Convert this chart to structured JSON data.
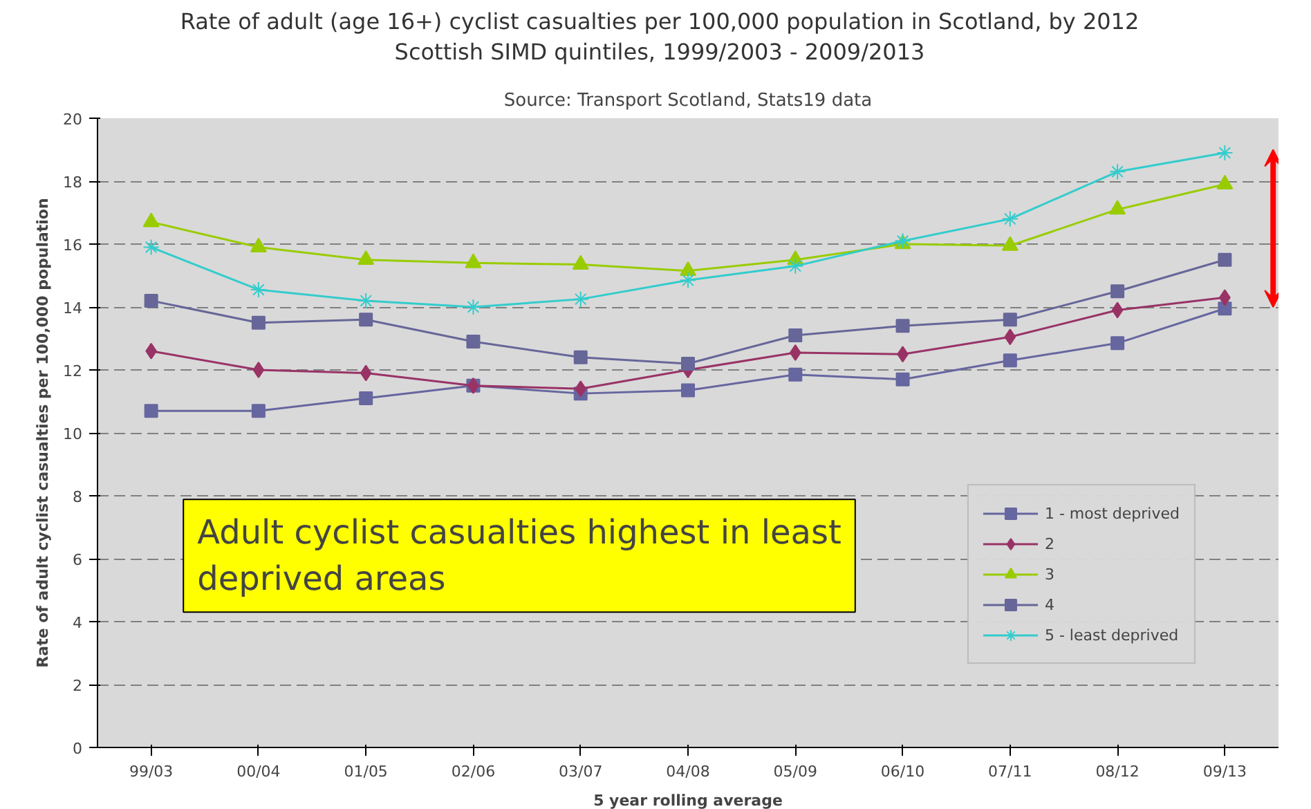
{
  "chart_data": {
    "type": "line",
    "title": "Rate of adult (age 16+) cyclist casualties per 100,000 population in Scotland, by 2012\nScottish SIMD quintiles, 1999/2003 - 2009/2013",
    "subtitle": "Source: Transport Scotland, Stats19 data",
    "xlabel": "5 year rolling average",
    "ylabel": "Rate of adult cyclist casualties per 100,000 population",
    "categories": [
      "99/03",
      "00/04",
      "01/05",
      "02/06",
      "03/07",
      "04/08",
      "05/09",
      "06/10",
      "07/11",
      "08/12",
      "09/13"
    ],
    "ylim": [
      0,
      20
    ],
    "yticks": [
      0,
      2,
      4,
      6,
      8,
      10,
      12,
      14,
      16,
      18,
      20
    ],
    "grid": "y",
    "legend": "bottom right",
    "annotations": [
      "Adult cyclist casualties highest in least\ndeprived areas"
    ],
    "series": [
      {
        "name": "1 - most deprived",
        "color": "#6666a0",
        "marker": "square",
        "values": [
          10.7,
          10.7,
          11.1,
          11.5,
          11.25,
          11.35,
          11.85,
          11.7,
          12.3,
          12.85,
          13.95
        ]
      },
      {
        "name": "2",
        "color": "#993366",
        "marker": "diamond",
        "values": [
          12.6,
          12.0,
          11.9,
          11.5,
          11.4,
          12.0,
          12.55,
          12.5,
          13.05,
          13.9,
          14.3
        ]
      },
      {
        "name": "3",
        "color": "#99cc00",
        "marker": "triangle",
        "values": [
          16.7,
          15.9,
          15.5,
          15.4,
          15.35,
          15.15,
          15.5,
          16.0,
          15.95,
          17.1,
          17.9
        ]
      },
      {
        "name": "4",
        "color": "#666699",
        "marker": "square",
        "values": [
          14.2,
          13.5,
          13.6,
          12.9,
          12.4,
          12.2,
          13.1,
          13.4,
          13.6,
          14.5,
          15.5
        ]
      },
      {
        "name": "5 - least deprived",
        "color": "#33cccc",
        "marker": "cross",
        "values": [
          15.9,
          14.55,
          14.2,
          14.0,
          14.25,
          14.85,
          15.3,
          16.1,
          16.8,
          18.3,
          18.9
        ]
      }
    ]
  }
}
